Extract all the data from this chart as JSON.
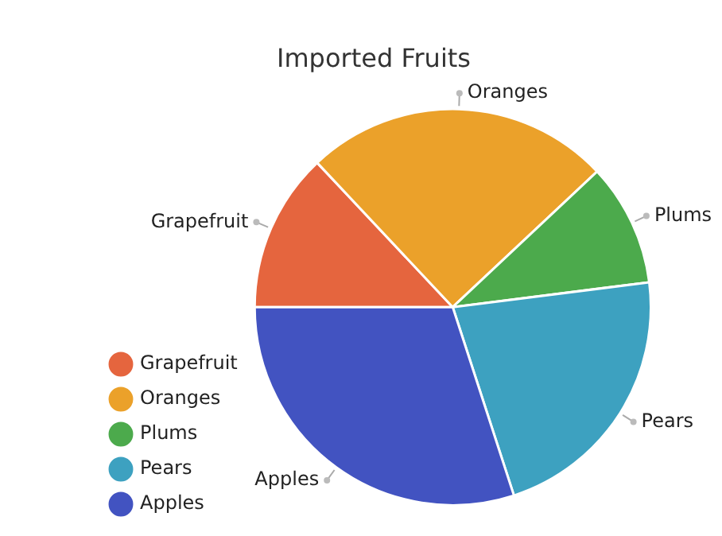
{
  "chart_data": {
    "type": "pie",
    "title": "Imported Fruits",
    "categories": [
      "Grapefruit",
      "Oranges",
      "Plums",
      "Pears",
      "Apples"
    ],
    "values": [
      13,
      25,
      10,
      22,
      30
    ],
    "colors": [
      "#e5653e",
      "#eba12a",
      "#4caa4c",
      "#3da1c0",
      "#4253c1"
    ],
    "legend": "left"
  }
}
